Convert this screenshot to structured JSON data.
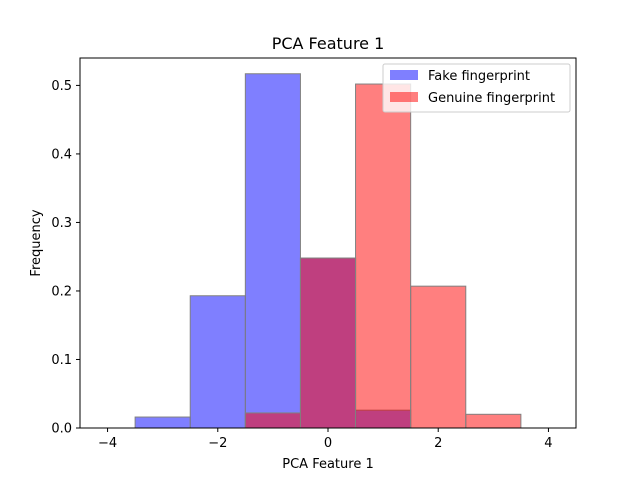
{
  "chart_data": {
    "type": "bar",
    "title": "PCA Feature 1",
    "xlabel": "PCA Feature 1",
    "ylabel": "Frequency",
    "xlim": [
      -4.5,
      4.5
    ],
    "ylim": [
      0,
      0.54
    ],
    "xticks": [
      -4,
      -2,
      0,
      2,
      4
    ],
    "xtick_labels": [
      "−4",
      "−2",
      "0",
      "2",
      "4"
    ],
    "yticks": [
      0.0,
      0.1,
      0.2,
      0.3,
      0.4,
      0.5
    ],
    "ytick_labels": [
      "0.0",
      "0.1",
      "0.2",
      "0.3",
      "0.4",
      "0.5"
    ],
    "grid": false,
    "legend_position": "top-right",
    "bin_edges": [
      -3.5,
      -2.5,
      -1.5,
      -0.5,
      0.5,
      1.5,
      2.5,
      3.5
    ],
    "series": [
      {
        "name": "Fake fingerprint",
        "color": "#0000ff",
        "alpha": 0.5,
        "values": [
          0.016,
          0.193,
          0.517,
          0.248,
          0.026,
          0.0,
          0.0
        ]
      },
      {
        "name": "Genuine fingerprint",
        "color": "#ff0000",
        "alpha": 0.5,
        "values": [
          0.0,
          0.0,
          0.022,
          0.248,
          0.502,
          0.207,
          0.02
        ]
      }
    ]
  }
}
